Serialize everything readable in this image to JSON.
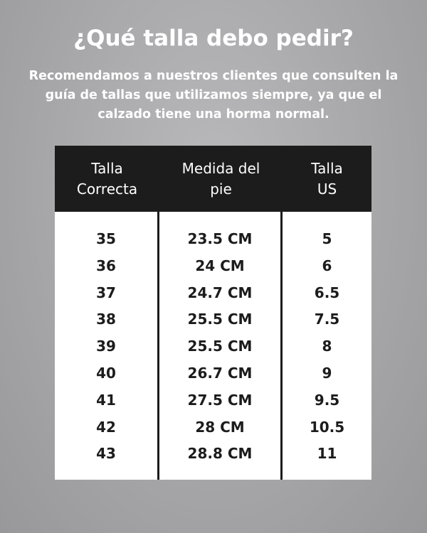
{
  "title": "¿Qué talla debo pedir?",
  "intro": "Recomendamos a nuestros clientes que consulten la guía de tallas que utilizamos siempre, ya que el calzado tiene una horma normal.",
  "table": {
    "headers": [
      "Talla Correcta",
      "Medida del pie",
      "Talla US"
    ],
    "rows": [
      [
        "35",
        "23.5 CM",
        "5"
      ],
      [
        "36",
        "24 CM",
        "6"
      ],
      [
        "37",
        "24.7 CM",
        "6.5"
      ],
      [
        "38",
        "25.5 CM",
        "7.5"
      ],
      [
        "39",
        "25.5 CM",
        "8"
      ],
      [
        "40",
        "26.7 CM",
        "9"
      ],
      [
        "41",
        "27.5 CM",
        "9.5"
      ],
      [
        "42",
        "28 CM",
        "10.5"
      ],
      [
        "43",
        "28.8 CM",
        "11"
      ]
    ]
  }
}
